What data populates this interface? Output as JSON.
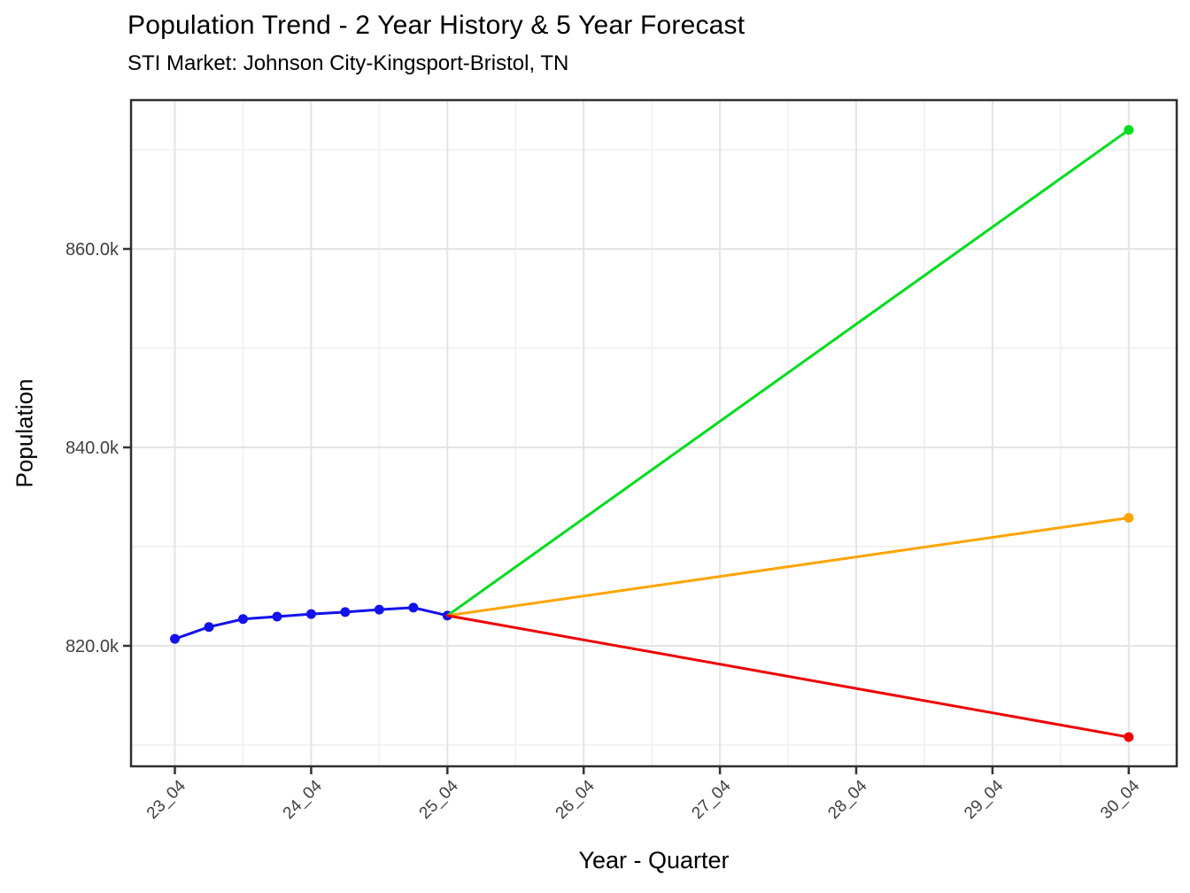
{
  "header": {
    "title": "Population Trend - 2 Year History & 5 Year Forecast",
    "subtitle": "STI Market: Johnson City-Kingsport-Bristol, TN"
  },
  "colors": {
    "history_line": "#1212EC",
    "forecast_high_line": "#00DC1E",
    "forecast_mid_line": "#FFA400",
    "forecast_low_line": "#EE0000",
    "grid_major": "#E4E4E4",
    "grid_minor": "#F1F1F1",
    "panel_border": "#2F2F2F",
    "tick_mark": "#333333",
    "tick_label": "#404040",
    "panel_background": "#FFFFFF"
  },
  "chart_data": {
    "type": "line",
    "title": "Population Trend - 2 Year History & 5 Year Forecast",
    "subtitle": "STI Market: Johnson City-Kingsport-Bristol, TN",
    "xlabel": "Year - Quarter",
    "ylabel": "Population",
    "x_tick_labels": [
      "23_04",
      "24_04",
      "25_04",
      "26_04",
      "27_04",
      "28_04",
      "29_04",
      "30_04"
    ],
    "x_minor_quarter_labels": [
      "24_02",
      "25_02",
      "26_02",
      "27_02",
      "28_02",
      "29_02",
      "30_02"
    ],
    "y_tick_labels": [
      "820.0k",
      "840.0k",
      "860.0k"
    ],
    "y_major_values_k": [
      820,
      840,
      860
    ],
    "y_minor_values_k": [
      810,
      830,
      850,
      870
    ],
    "ylim_k": [
      807.9,
      875.0
    ],
    "grid": "on",
    "legend": "none",
    "series": [
      {
        "name": "history",
        "color_key": "history_line",
        "markers": "all",
        "points": [
          [
            "23_04",
            820.7
          ],
          [
            "24_01",
            821.9
          ],
          [
            "24_02",
            822.7
          ],
          [
            "24_03",
            822.95
          ],
          [
            "24_04",
            823.2
          ],
          [
            "25_01",
            823.4
          ],
          [
            "25_02",
            823.65
          ],
          [
            "25_03",
            823.85
          ],
          [
            "25_04",
            823.05
          ]
        ]
      },
      {
        "name": "forecast-high",
        "color_key": "forecast_high_line",
        "markers": "last",
        "points": [
          [
            "25_04",
            823.05
          ],
          [
            "30_04",
            872.0
          ]
        ]
      },
      {
        "name": "forecast-mid",
        "color_key": "forecast_mid_line",
        "markers": "last",
        "points": [
          [
            "25_04",
            823.05
          ],
          [
            "30_04",
            832.9
          ]
        ]
      },
      {
        "name": "forecast-low",
        "color_key": "forecast_low_line",
        "markers": "last",
        "points": [
          [
            "25_04",
            823.05
          ],
          [
            "30_04",
            810.8
          ]
        ]
      }
    ]
  }
}
